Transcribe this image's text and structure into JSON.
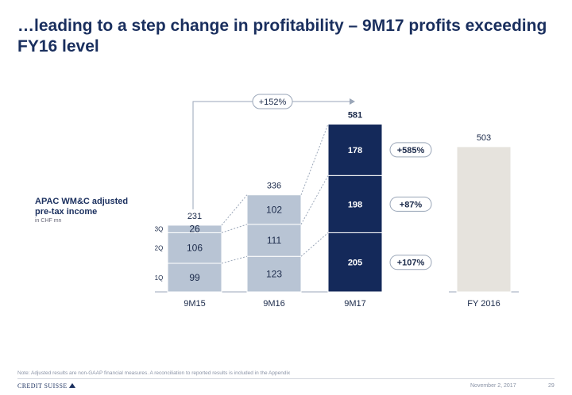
{
  "header": {
    "title": "…leading to a step change in profitability – 9M17 profits exceeding FY16 level"
  },
  "chart_label": {
    "title": "APAC WM&C adjusted pre-tax income",
    "unit": "in CHF mn"
  },
  "chart_data": {
    "type": "bar",
    "stacked": true,
    "categories": [
      "9M15",
      "9M16",
      "9M17",
      "FY 2016"
    ],
    "series": [
      {
        "name": "1Q",
        "values": [
          99,
          123,
          205,
          null
        ]
      },
      {
        "name": "2Q",
        "values": [
          106,
          111,
          198,
          null
        ]
      },
      {
        "name": "3Q",
        "values": [
          26,
          102,
          178,
          null
        ]
      },
      {
        "name": "",
        "values": [
          null,
          null,
          null,
          503
        ]
      }
    ],
    "totals": [
      231,
      336,
      581,
      503
    ],
    "growth_labels": [
      "+585%",
      "+87%",
      "+107%"
    ],
    "overall_growth_label": "+152%",
    "quarter_labels": [
      "3Q",
      "2Q",
      "1Q"
    ],
    "ylim": [
      0,
      620
    ],
    "colors": {
      "9M15": "#b8c4d4",
      "9M16": "#b8c4d4",
      "9M17": "#14295a",
      "FY 2016": "#e6e3dd",
      "connector": "#9aa6b8"
    },
    "grid": false,
    "legend": "none"
  },
  "footer": {
    "note": "Note: Adjusted results are non-GAAP financial measures. A reconciliation to reported results is included in the Appendix",
    "logo": "CREDIT SUISSE",
    "date": "November 2, 2017",
    "page": "29"
  }
}
